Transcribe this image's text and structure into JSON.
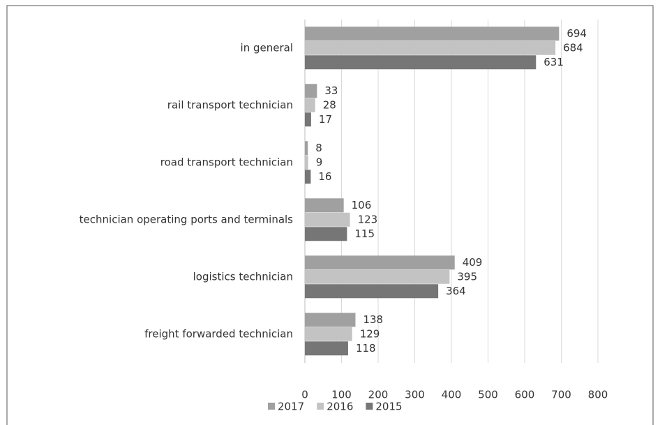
{
  "chart_data": {
    "type": "bar",
    "orientation": "horizontal",
    "categories": [
      "in general",
      "rail transport technician",
      "road transport technician",
      "technician operating ports and terminals",
      "logistics technician",
      "freight forwarded technician"
    ],
    "series": [
      {
        "name": "2017",
        "color": "#a0a0a0",
        "values": [
          694,
          33,
          8,
          106,
          409,
          138
        ]
      },
      {
        "name": "2016",
        "color": "#c3c3c3",
        "values": [
          684,
          28,
          9,
          123,
          395,
          129
        ]
      },
      {
        "name": "2015",
        "color": "#767676",
        "values": [
          631,
          17,
          16,
          115,
          364,
          118
        ]
      }
    ],
    "xlim": [
      0,
      800
    ],
    "xticks": [
      0,
      100,
      200,
      300,
      400,
      500,
      600,
      700,
      800
    ],
    "grid": true,
    "legend": "bottom"
  }
}
